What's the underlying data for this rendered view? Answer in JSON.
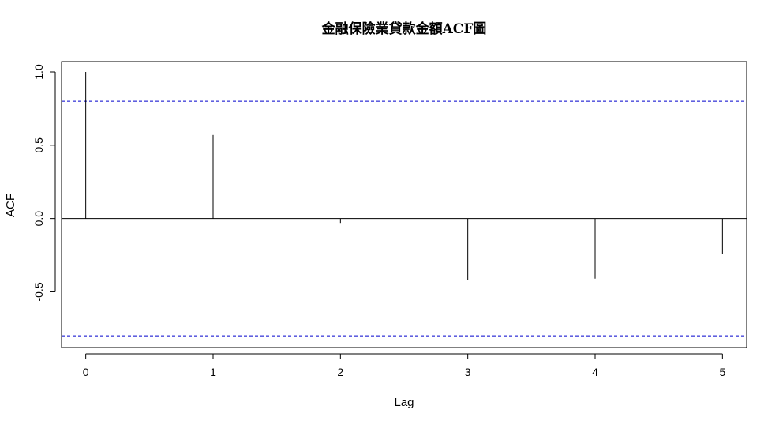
{
  "chart_data": {
    "type": "bar",
    "title": "金融保險業貸款金額ACF圖",
    "xlabel": "Lag",
    "ylabel": "ACF",
    "x": [
      0,
      1,
      2,
      3,
      4,
      5
    ],
    "values": [
      1.0,
      0.57,
      -0.03,
      -0.42,
      -0.41,
      -0.24
    ],
    "xlim": [
      -0.19,
      5.19
    ],
    "ylim": [
      -0.88,
      1.07
    ],
    "x_ticks": [
      "0",
      "1",
      "2",
      "3",
      "4",
      "5"
    ],
    "y_ticks": [
      "-0.5",
      "0.0",
      "0.5",
      "1.0"
    ],
    "y_tick_values": [
      -0.5,
      0.0,
      0.5,
      1.0
    ],
    "confidence_limits": [
      0.8,
      -0.8
    ],
    "grid": false,
    "colors": {
      "bars": "#000000",
      "confidence": "#0000cc",
      "zero_line": "#000000"
    }
  }
}
